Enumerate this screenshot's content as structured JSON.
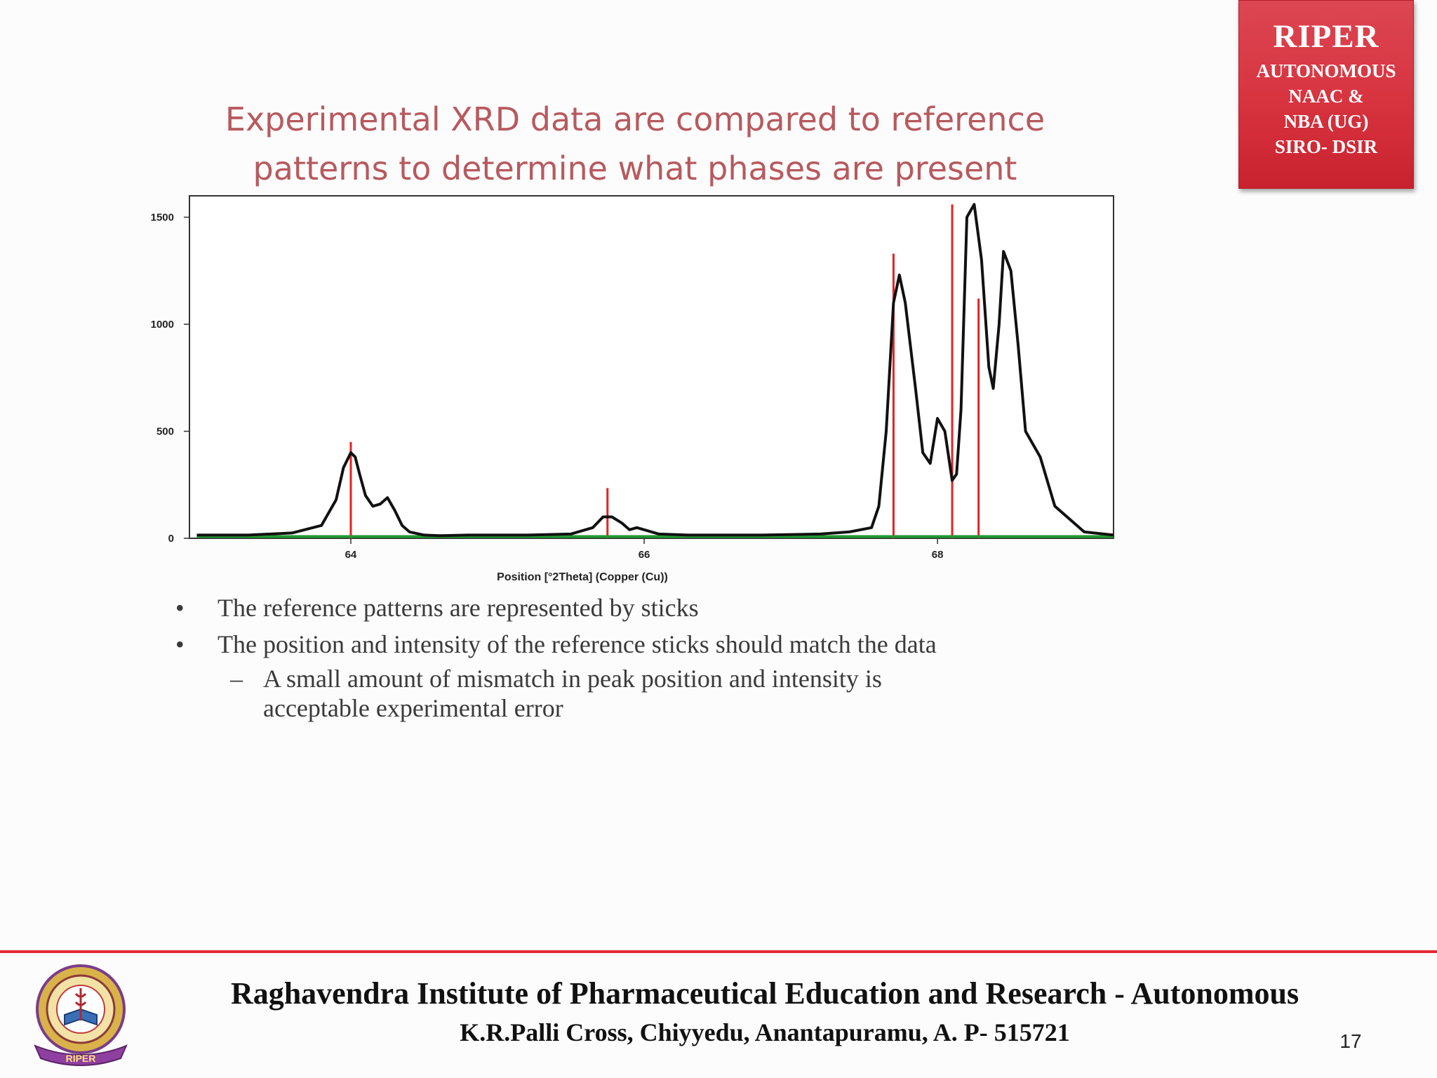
{
  "badge": {
    "title": "RIPER",
    "lines": [
      "AUTONOMOUS",
      "NAAC &",
      "NBA (UG)",
      "SIRO- DSIR"
    ]
  },
  "slide": {
    "title_lines": [
      "Experimental XRD data are compared to reference",
      "patterns to determine what phases are present"
    ],
    "bullets": [
      "The reference patterns are represented by sticks",
      "The position and intensity of the reference sticks should match the data"
    ],
    "sub_bullet_lines": [
      "A small amount of mismatch in peak position and intensity is",
      "acceptable experimental error"
    ],
    "bullet_glyph": "•",
    "dash_glyph": "–"
  },
  "chart_data": {
    "type": "line",
    "title": "",
    "xlabel": "Position [°2Theta] (Copper (Cu))",
    "ylabel": "",
    "xlim": [
      62.9,
      69.2
    ],
    "ylim": [
      0,
      1600
    ],
    "x_ticks": [
      64,
      66,
      68
    ],
    "y_ticks": [
      0,
      500,
      1000,
      1500
    ],
    "grid": false,
    "series": [
      {
        "role": "measured pattern",
        "color": "#111111",
        "x": [
          62.95,
          63.3,
          63.6,
          63.8,
          63.9,
          63.95,
          64.0,
          64.03,
          64.06,
          64.1,
          64.15,
          64.2,
          64.25,
          64.3,
          64.35,
          64.4,
          64.5,
          64.6,
          64.8,
          65.2,
          65.5,
          65.65,
          65.72,
          65.78,
          65.85,
          65.9,
          65.95,
          66.0,
          66.1,
          66.3,
          66.8,
          67.2,
          67.4,
          67.55,
          67.6,
          67.65,
          67.7,
          67.74,
          67.78,
          67.85,
          67.9,
          67.95,
          68.0,
          68.05,
          68.1,
          68.13,
          68.16,
          68.2,
          68.25,
          68.3,
          68.35,
          68.38,
          68.42,
          68.45,
          68.5,
          68.55,
          68.6,
          68.7,
          68.8,
          69.0,
          69.2
        ],
        "y": [
          15,
          15,
          25,
          60,
          180,
          330,
          400,
          380,
          300,
          200,
          150,
          160,
          190,
          130,
          60,
          30,
          15,
          12,
          15,
          15,
          20,
          50,
          100,
          100,
          70,
          40,
          50,
          40,
          20,
          15,
          15,
          20,
          30,
          50,
          150,
          500,
          1100,
          1230,
          1100,
          700,
          400,
          350,
          560,
          500,
          270,
          300,
          600,
          1500,
          1560,
          1300,
          800,
          700,
          1000,
          1340,
          1250,
          900,
          500,
          380,
          150,
          30,
          15
        ]
      },
      {
        "role": "baseline",
        "color": "#1f9a30",
        "x": [
          62.95,
          69.2
        ],
        "y": [
          8,
          8
        ]
      }
    ],
    "reference_sticks": {
      "color": "#e32222",
      "x": [
        64.0,
        65.75,
        67.7,
        68.1,
        68.28
      ],
      "y": [
        450,
        235,
        1330,
        1560,
        1120
      ]
    }
  },
  "footer": {
    "institute": "Raghavendra Institute of Pharmaceutical Education and Research - Autonomous",
    "address": "K.R.Palli Cross, Chiyyedu, Anantapuramu, A. P- 515721",
    "page_number": "17",
    "logo_text": "RIPER"
  },
  "colors": {
    "title": "#b75a5e",
    "badge": "#d7333f",
    "rule": "#e52a34"
  }
}
